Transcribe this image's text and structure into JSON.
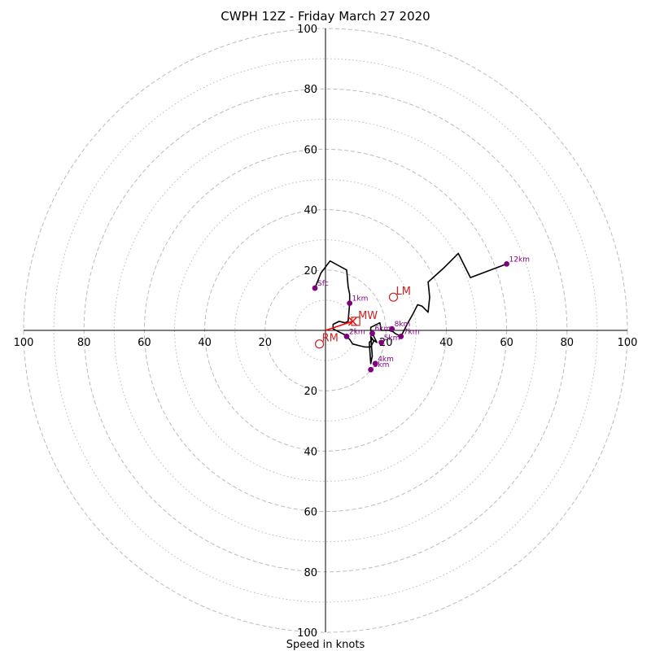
{
  "title": "CWPH 12Z - Friday March 27 2020",
  "chart_data": {
    "type": "hodograph",
    "title": "CWPH 12Z - Friday March 27 2020",
    "xlabel": "Speed in knots",
    "ring_labels": [
      "20",
      "40",
      "60",
      "80",
      "100"
    ],
    "x_tick_labels": [
      "100",
      "80",
      "60",
      "40",
      "20",
      "20",
      "40",
      "60",
      "80",
      "100"
    ],
    "y_tick_labels": [
      "100",
      "80",
      "60",
      "40",
      "20",
      "20",
      "40",
      "60",
      "80",
      "100"
    ],
    "range": [
      -100,
      100
    ],
    "grid": true,
    "profile": [
      [
        -3.5,
        14
      ],
      [
        -1.5,
        19
      ],
      [
        1.5,
        23
      ],
      [
        7,
        20
      ],
      [
        7.5,
        14.5
      ],
      [
        8,
        12
      ],
      [
        8,
        9
      ],
      [
        7.5,
        3
      ],
      [
        6.5,
        2.5
      ],
      [
        4.5,
        3
      ],
      [
        2.5,
        2
      ],
      [
        2.5,
        0.5
      ],
      [
        4.5,
        -0.5
      ],
      [
        6.5,
        -1.5
      ],
      [
        8,
        -3
      ],
      [
        9,
        -4.5
      ],
      [
        11,
        -5
      ],
      [
        13,
        -5.5
      ],
      [
        15,
        -5.5
      ],
      [
        16,
        -3.5
      ],
      [
        15,
        -2
      ],
      [
        15.5,
        -8.5
      ],
      [
        15,
        -11
      ],
      [
        14.5,
        -4
      ],
      [
        15.5,
        -3
      ],
      [
        17,
        -4
      ],
      [
        15,
        0
      ],
      [
        15,
        1
      ],
      [
        18,
        2.5
      ],
      [
        18.5,
        0
      ],
      [
        21,
        0
      ],
      [
        22.5,
        -0.5
      ],
      [
        23,
        -1
      ],
      [
        25,
        -2
      ],
      [
        27,
        2
      ],
      [
        29,
        5.5
      ],
      [
        30.5,
        8.5
      ],
      [
        32,
        8
      ],
      [
        34,
        6
      ],
      [
        34.5,
        11
      ],
      [
        34,
        16
      ],
      [
        39,
        20.5
      ],
      [
        44,
        25.5
      ],
      [
        48,
        17.5
      ],
      [
        60,
        22
      ]
    ],
    "height_points": [
      {
        "label": "Sfc",
        "u": -3.5,
        "v": 14
      },
      {
        "label": "1km",
        "u": 8,
        "v": 9
      },
      {
        "label": "2km",
        "u": 7,
        "v": -2
      },
      {
        "label": "3km",
        "u": 15,
        "v": -13
      },
      {
        "label": "4km",
        "u": 16.5,
        "v": -11
      },
      {
        "label": "5km",
        "u": 18.5,
        "v": -4
      },
      {
        "label": "6km",
        "u": 15.5,
        "v": -1
      },
      {
        "label": "7km",
        "u": 25,
        "v": -2
      },
      {
        "label": "8km",
        "u": 22,
        "v": 0.5
      },
      {
        "label": "12km",
        "u": 60,
        "v": 22
      }
    ],
    "markers": [
      {
        "label": "MW",
        "u": 10,
        "v": 3,
        "shape": "square"
      },
      {
        "label": "LM",
        "u": 22.5,
        "v": 11,
        "shape": "circle"
      },
      {
        "label": "RM",
        "u": -2,
        "v": -4.5,
        "shape": "circle"
      }
    ],
    "shear_vector": {
      "from": [
        0,
        0
      ],
      "to": [
        9,
        3
      ]
    },
    "colors": {
      "profile": "#000000",
      "heights": "#800080",
      "markers": "#cc2222",
      "shear": "#ff0000",
      "grid": "#bbbbbb"
    }
  }
}
